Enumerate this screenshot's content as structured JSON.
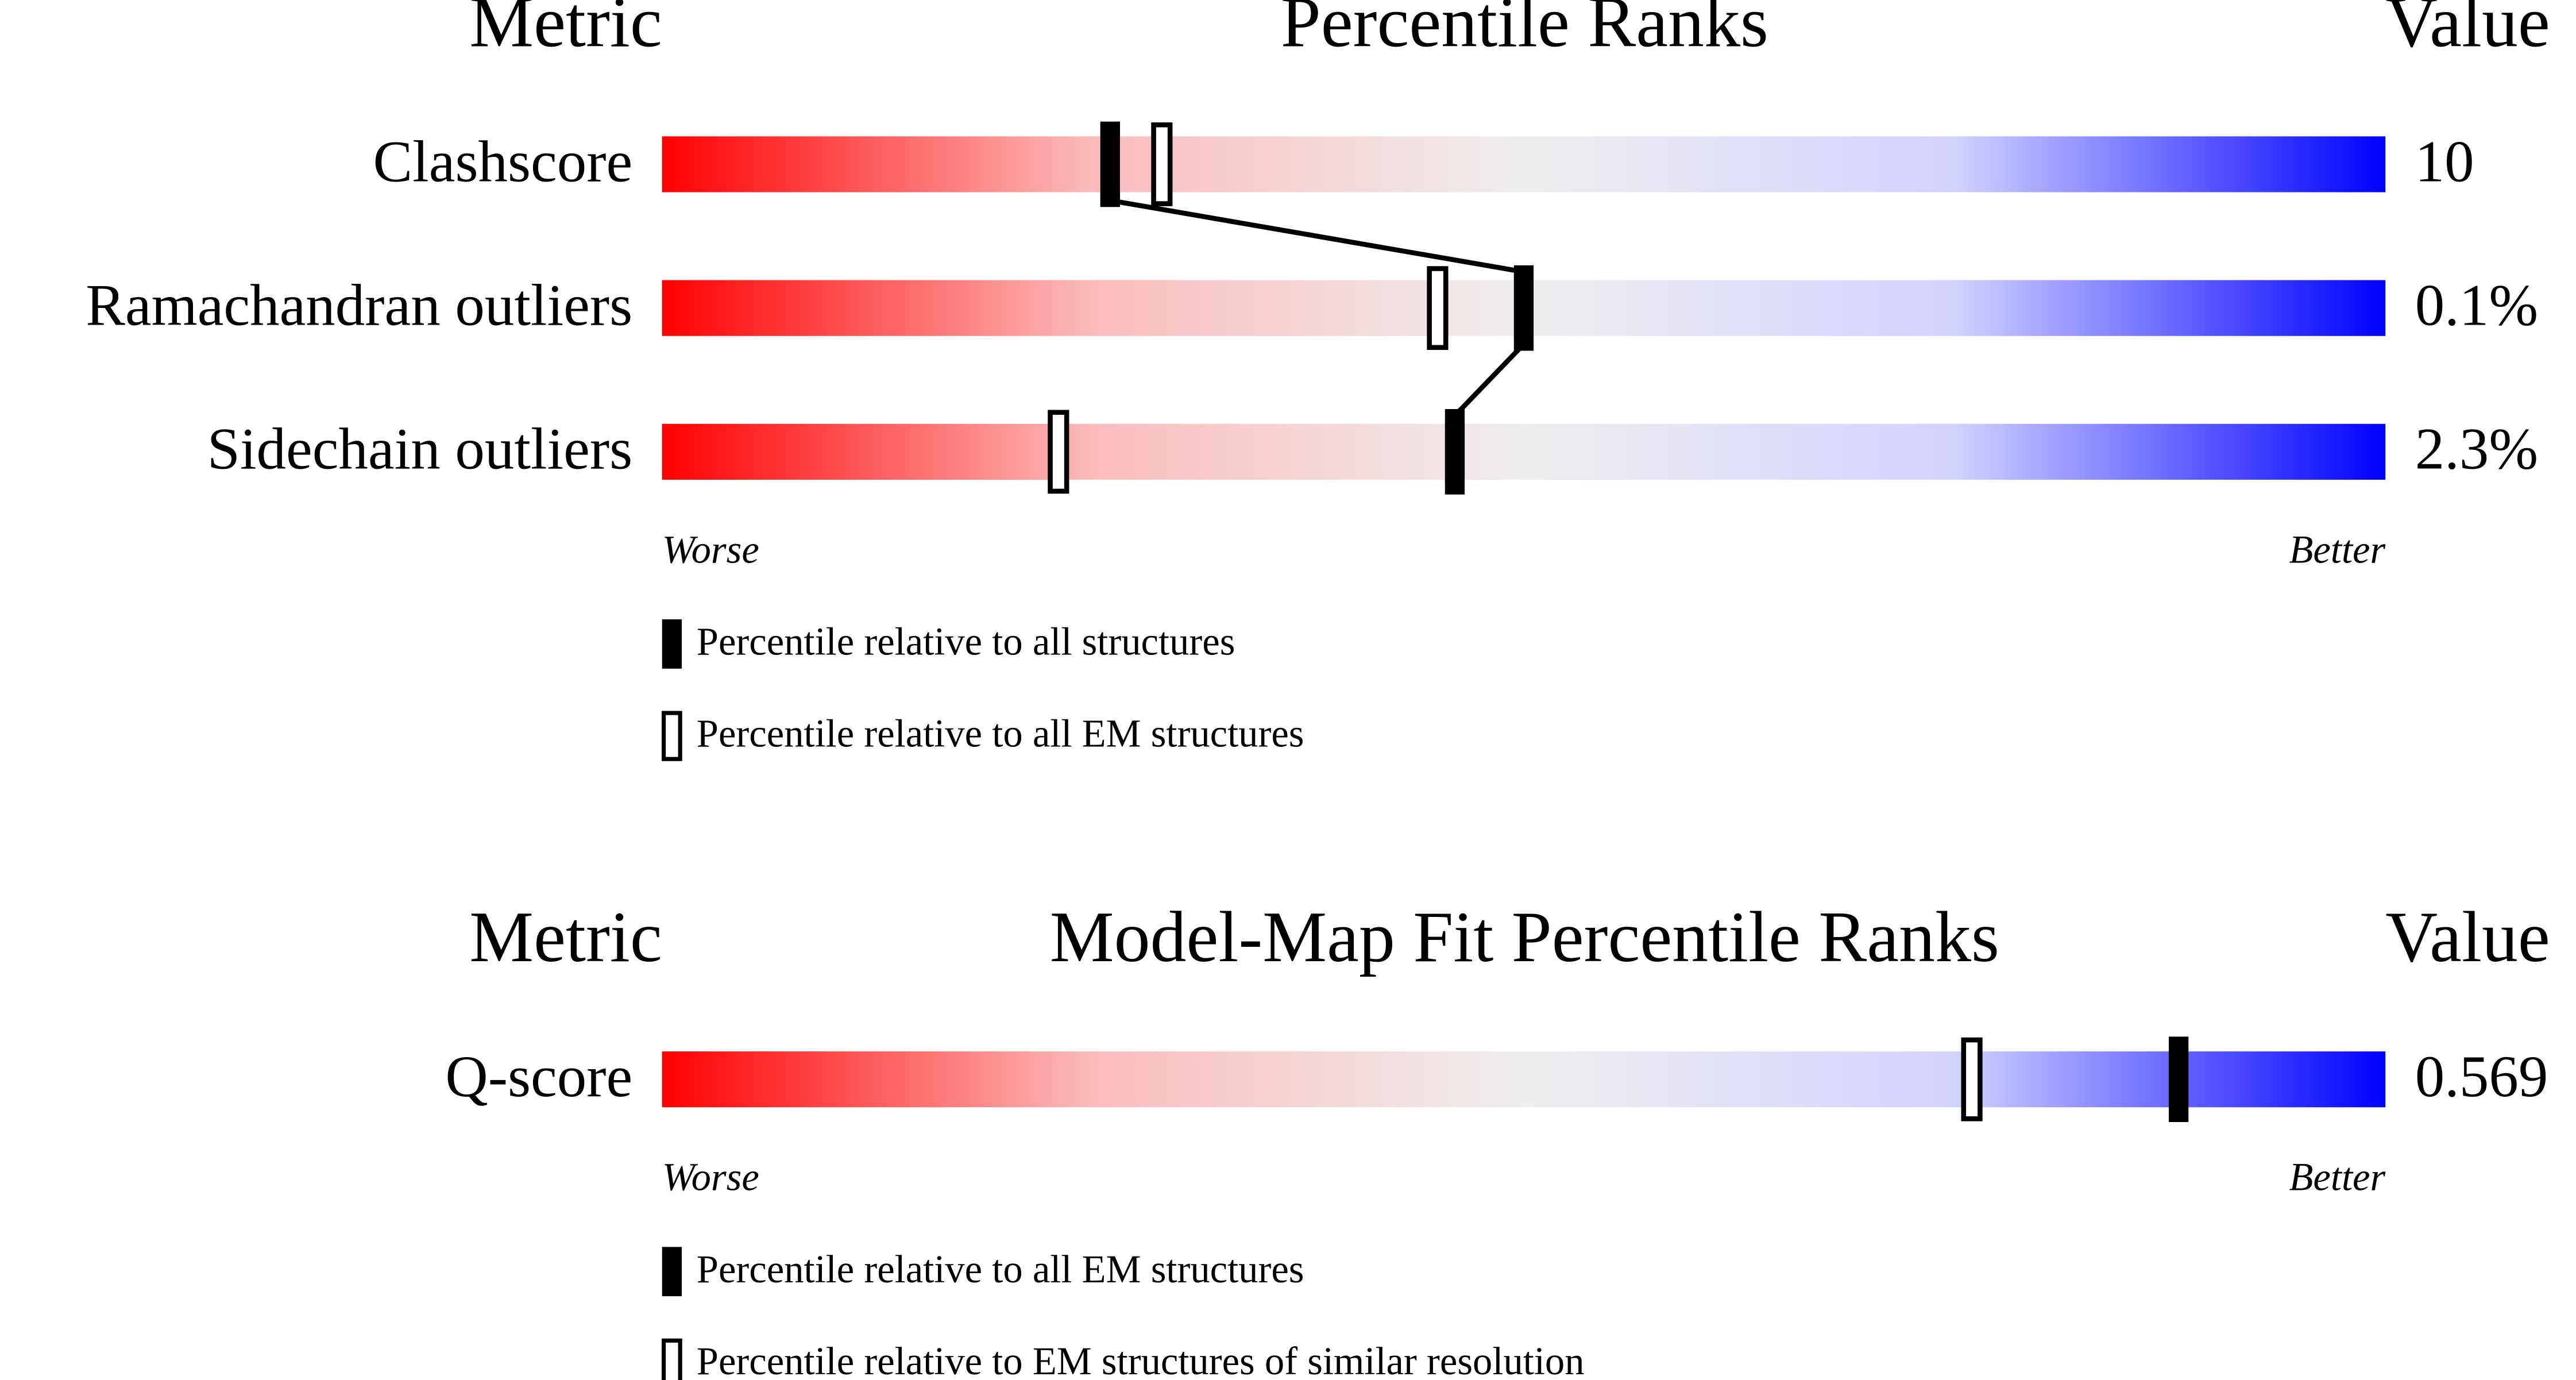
{
  "chart_data": [
    {
      "type": "percentile-slider",
      "header_metric": "Metric",
      "title": "Percentile Ranks",
      "header_value": "Value",
      "categories": [
        "Clashscore",
        "Ramachandran outliers",
        "Sidechain outliers"
      ],
      "metric_values": [
        "10",
        "0.1%",
        "2.3%"
      ],
      "xlim": [
        0,
        100
      ],
      "worse_label": "Worse",
      "better_label": "Better",
      "series": [
        {
          "name": "Percentile relative to all structures",
          "style": "filled",
          "color": "#000000",
          "connected": true,
          "values": [
            26,
            50,
            46
          ]
        },
        {
          "name": "Percentile relative to all EM structures",
          "style": "outline",
          "color": "#000000",
          "connected": false,
          "values": [
            29,
            45,
            23
          ]
        }
      ]
    },
    {
      "type": "percentile-slider",
      "header_metric": "Metric",
      "title": "Model-Map Fit Percentile Ranks",
      "header_value": "Value",
      "categories": [
        "Q-score"
      ],
      "metric_values": [
        "0.569"
      ],
      "xlim": [
        0,
        100
      ],
      "worse_label": "Worse",
      "better_label": "Better",
      "series": [
        {
          "name": "Percentile relative to all EM structures",
          "style": "filled",
          "color": "#000000",
          "connected": true,
          "values": [
            88
          ]
        },
        {
          "name": "Percentile relative to EM structures of similar resolution",
          "style": "outline",
          "color": "#000000",
          "connected": false,
          "values": [
            76
          ]
        }
      ]
    }
  ]
}
